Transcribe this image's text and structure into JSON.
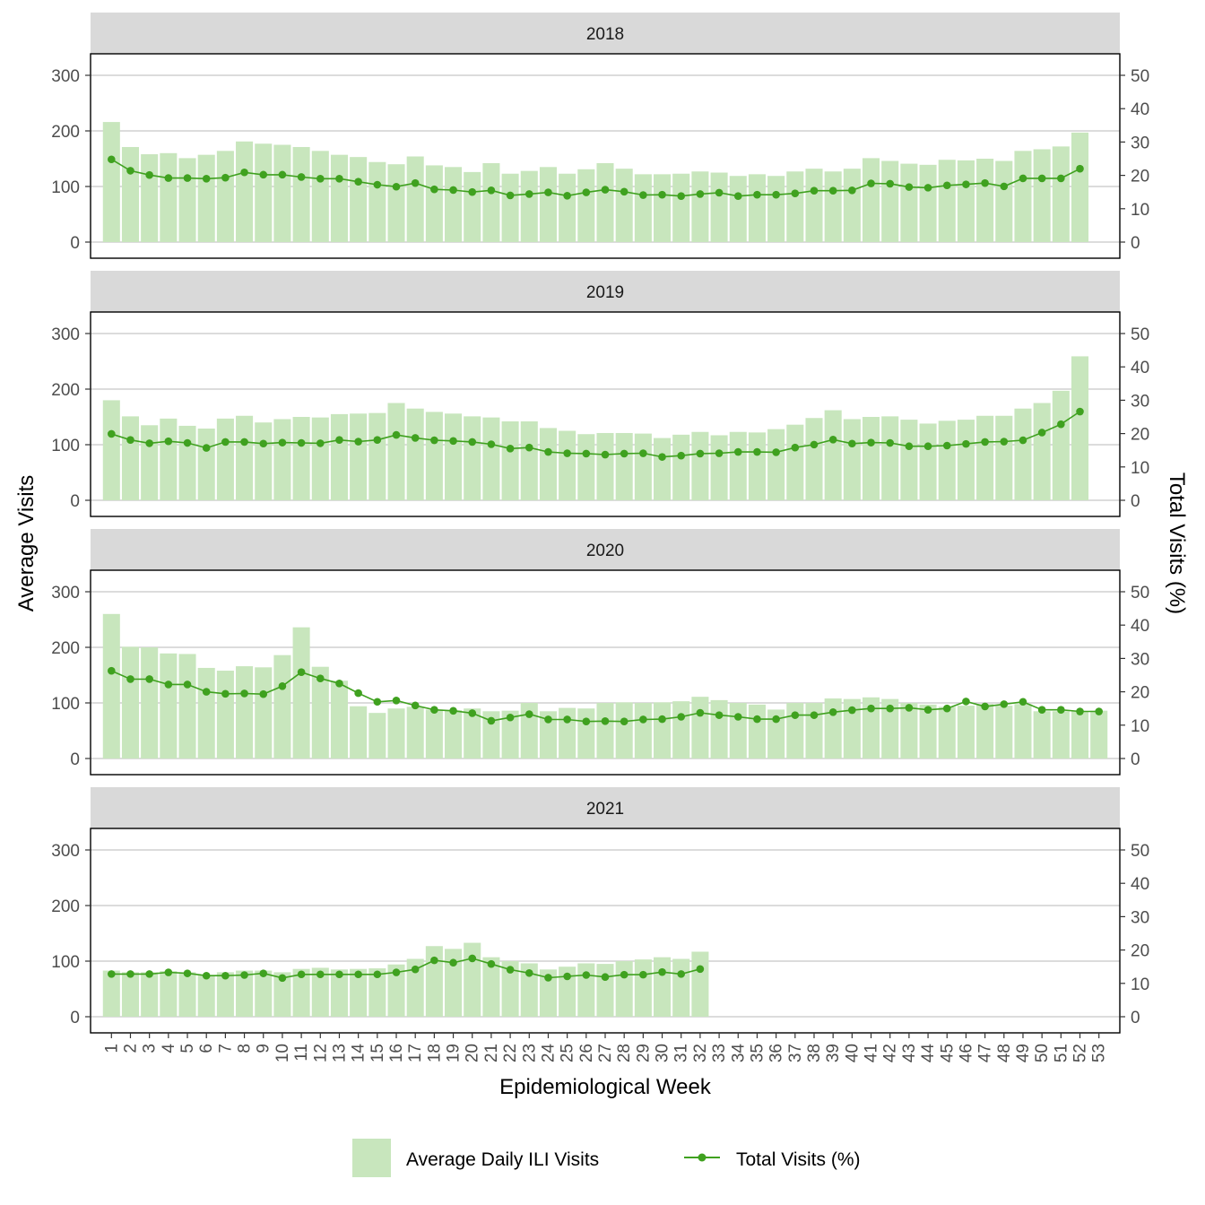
{
  "chart_data": {
    "type": "bar+line",
    "xlabel": "Epidemiological Week",
    "ylabel_left": "Average Visits",
    "ylabel_right": "Total Visits (%)",
    "ylim_left": [
      0,
      300
    ],
    "ylim_right": [
      0,
      50
    ],
    "yticks_left": [
      0,
      100,
      200,
      300
    ],
    "yticks_right": [
      0,
      10,
      20,
      30,
      40,
      50
    ],
    "grid": true,
    "legend_position": "bottom",
    "weeks": [
      1,
      2,
      3,
      4,
      5,
      6,
      7,
      8,
      9,
      10,
      11,
      12,
      13,
      14,
      15,
      16,
      17,
      18,
      19,
      20,
      21,
      22,
      23,
      24,
      25,
      26,
      27,
      28,
      29,
      30,
      31,
      32,
      33,
      34,
      35,
      36,
      37,
      38,
      39,
      40,
      41,
      42,
      43,
      44,
      45,
      46,
      47,
      48,
      49,
      50,
      51,
      52,
      53
    ],
    "series": [
      {
        "name": "Average Daily ILI Visits",
        "kind": "bar",
        "axis": "left",
        "color": "#c8e6bd"
      },
      {
        "name": "Total Visits (%)",
        "kind": "line",
        "axis": "right",
        "color": "#3fa11f"
      }
    ],
    "panels": [
      {
        "year": "2018",
        "bars": [
          216,
          171,
          158,
          160,
          151,
          157,
          164,
          181,
          177,
          175,
          171,
          164,
          157,
          153,
          144,
          140,
          154,
          138,
          135,
          126,
          142,
          123,
          128,
          135,
          123,
          131,
          142,
          132,
          122,
          122,
          123,
          127,
          125,
          119,
          122,
          119,
          127,
          132,
          127,
          132,
          151,
          146,
          141,
          139,
          148,
          147,
          150,
          146,
          164,
          167,
          172,
          197
        ],
        "pct": [
          24.8,
          21.4,
          20.1,
          19.2,
          19.2,
          19.0,
          19.3,
          20.9,
          20.2,
          20.2,
          19.5,
          19.0,
          19.0,
          18.1,
          17.2,
          16.6,
          17.7,
          15.8,
          15.6,
          15.0,
          15.5,
          14.0,
          14.4,
          14.9,
          13.9,
          14.9,
          15.7,
          15.1,
          14.1,
          14.2,
          13.8,
          14.4,
          14.8,
          13.8,
          14.2,
          14.2,
          14.6,
          15.4,
          15.4,
          15.5,
          17.6,
          17.5,
          16.5,
          16.3,
          17.0,
          17.3,
          17.7,
          16.7,
          19.1,
          19.1,
          19.1,
          22.0
        ]
      },
      {
        "year": "2019",
        "bars": [
          180,
          151,
          135,
          147,
          134,
          129,
          147,
          152,
          140,
          146,
          150,
          149,
          155,
          156,
          157,
          175,
          165,
          159,
          156,
          151,
          149,
          142,
          142,
          130,
          125,
          119,
          121,
          121,
          120,
          112,
          118,
          123,
          117,
          123,
          122,
          128,
          136,
          148,
          162,
          146,
          150,
          151,
          145,
          138,
          143,
          145,
          152,
          152,
          165,
          175,
          197,
          259
        ],
        "pct": [
          19.9,
          18.1,
          17.1,
          17.7,
          17.2,
          15.7,
          17.5,
          17.5,
          17.0,
          17.3,
          17.2,
          17.1,
          18.1,
          17.6,
          18.1,
          19.6,
          18.7,
          18.0,
          17.8,
          17.5,
          16.8,
          15.5,
          15.8,
          14.5,
          14.1,
          14.0,
          13.7,
          14.0,
          14.1,
          13.0,
          13.4,
          14.0,
          14.1,
          14.5,
          14.5,
          14.4,
          15.8,
          16.7,
          18.2,
          17.0,
          17.3,
          17.2,
          16.2,
          16.2,
          16.4,
          16.9,
          17.5,
          17.6,
          18.0,
          20.3,
          22.8,
          26.6
        ]
      },
      {
        "year": "2020",
        "bars": [
          260,
          201,
          200,
          189,
          188,
          163,
          158,
          166,
          164,
          186,
          236,
          165,
          140,
          94,
          82,
          90,
          93,
          88,
          87,
          90,
          85,
          86,
          100,
          85,
          91,
          90,
          100,
          101,
          100,
          101,
          103,
          111,
          105,
          100,
          97,
          88,
          100,
          100,
          108,
          107,
          110,
          107,
          100,
          97,
          93,
          95,
          98,
          95,
          98,
          85,
          85,
          85,
          86
        ],
        "pct": [
          26.3,
          23.8,
          23.8,
          22.2,
          22.2,
          20.0,
          19.4,
          19.5,
          19.3,
          21.7,
          25.9,
          24.0,
          22.5,
          19.6,
          17.0,
          17.4,
          15.9,
          14.6,
          14.3,
          13.6,
          11.3,
          12.3,
          13.3,
          11.7,
          11.7,
          11.1,
          11.2,
          11.1,
          11.7,
          11.8,
          12.5,
          13.7,
          13.0,
          12.5,
          11.8,
          11.8,
          13.0,
          13.0,
          13.9,
          14.5,
          15.0,
          15.0,
          15.2,
          14.6,
          15.0,
          17.1,
          15.6,
          16.3,
          17.0,
          14.6,
          14.6,
          14.1,
          14.1
        ]
      },
      {
        "year": "2021",
        "bars": [
          83,
          80,
          80,
          82,
          80,
          75,
          80,
          83,
          83,
          80,
          86,
          88,
          85,
          86,
          87,
          94,
          104,
          127,
          122,
          133,
          107,
          100,
          96,
          85,
          90,
          96,
          95,
          100,
          103,
          107,
          104,
          117
        ],
        "pct": [
          12.8,
          12.8,
          12.8,
          13.3,
          13.0,
          12.3,
          12.3,
          12.5,
          13.0,
          11.6,
          12.7,
          12.7,
          12.7,
          12.7,
          12.7,
          13.3,
          14.2,
          16.9,
          16.2,
          17.5,
          15.8,
          14.1,
          13.1,
          11.7,
          12.1,
          12.5,
          11.9,
          12.6,
          12.6,
          13.4,
          12.8,
          14.3
        ]
      }
    ]
  }
}
